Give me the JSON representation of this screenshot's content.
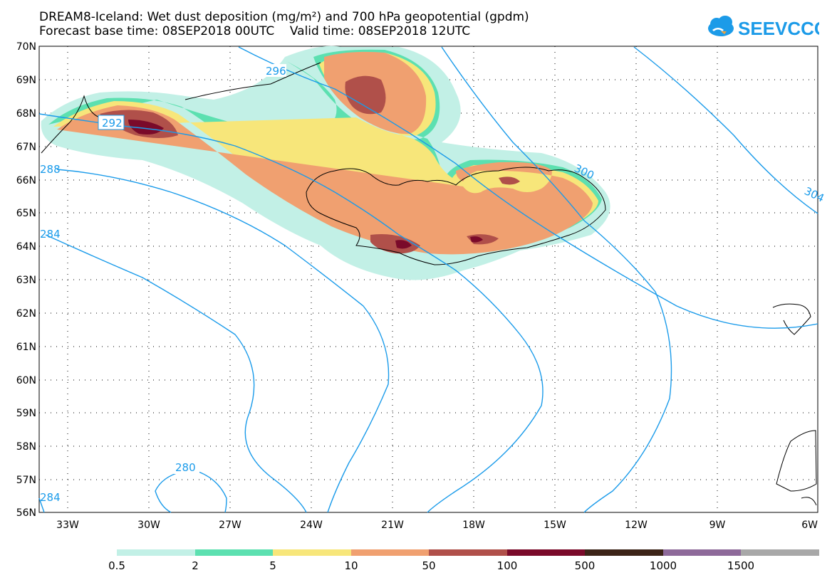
{
  "header": {
    "title_line1": "DREAM8-Iceland: Wet dust deposition (mg/m²) and 700 hPa geopotential (gpdm)",
    "title_line2": "Forecast base time: 08SEP2018 00UTC    Valid time: 08SEP2018 12UTC",
    "logo_text": "SEEVCCC"
  },
  "map": {
    "lat_labels": [
      "70N",
      "69N",
      "68N",
      "67N",
      "66N",
      "65N",
      "64N",
      "63N",
      "62N",
      "61N",
      "60N",
      "59N",
      "58N",
      "57N",
      "56N"
    ],
    "lon_labels": [
      "33W",
      "30W",
      "27W",
      "24W",
      "21W",
      "18W",
      "15W",
      "12W",
      "9W",
      "6W"
    ],
    "contour_labels": [
      "292",
      "296",
      "300",
      "304",
      "288",
      "284",
      "280",
      "284"
    ],
    "contour_color": "#1a9bea",
    "coastline_color": "#000000"
  },
  "colorbar": {
    "labels": [
      "0.5",
      "2",
      "5",
      "10",
      "50",
      "100",
      "500",
      "1000",
      "1500"
    ],
    "colors": [
      "#c2f0e6",
      "#5ce0b0",
      "#f7e67a",
      "#f0a070",
      "#b0504a",
      "#7a0a2a",
      "#3c2418",
      "#8e6a9a",
      "#a8a8a8"
    ]
  }
}
